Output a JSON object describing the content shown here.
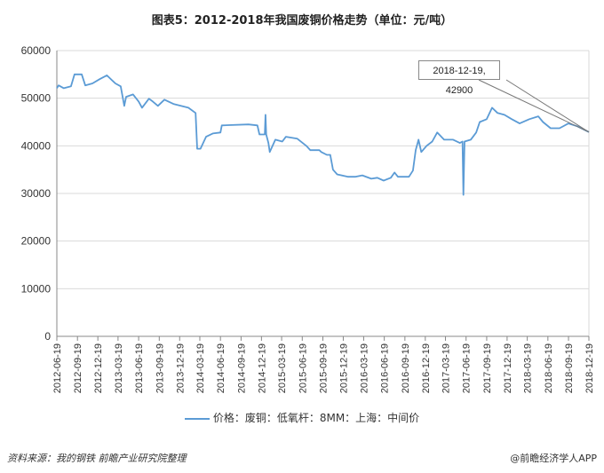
{
  "chart_data": {
    "type": "line",
    "title": "图表5：2012-2018年我国废铜价格走势（单位：元/吨）",
    "xlabel": "",
    "ylabel": "",
    "ylim": [
      0,
      60000
    ],
    "yticks": [
      "0",
      "10000",
      "20000",
      "30000",
      "40000",
      "50000",
      "60000"
    ],
    "xlim": [
      "2012-06-19",
      "2018-12-19"
    ],
    "xticks": [
      "2012-06-19",
      "2012-09-19",
      "2012-12-19",
      "2013-03-19",
      "2013-06-19",
      "2013-09-19",
      "2013-12-19",
      "2014-03-19",
      "2014-06-19",
      "2014-09-19",
      "2014-12-19",
      "2015-03-19",
      "2015-06-19",
      "2015-09-19",
      "2015-12-19",
      "2016-03-19",
      "2016-06-19",
      "2016-09-19",
      "2016-12-19",
      "2017-03-19",
      "2017-06-19",
      "2017-09-19",
      "2017-12-19",
      "2018-03-19",
      "2018-06-19",
      "2018-09-19",
      "2018-12-19"
    ],
    "grid": true,
    "legend_position": "bottom",
    "series": [
      {
        "name": "价格：废铜：低氧杆：8MM：上海：中间价",
        "color": "#5b9bd5",
        "points": [
          [
            "2012-06-19",
            52100
          ],
          [
            "2012-06-27",
            52700
          ],
          [
            "2012-07-20",
            52100
          ],
          [
            "2012-08-21",
            52500
          ],
          [
            "2012-09-06",
            55000
          ],
          [
            "2012-10-08",
            55000
          ],
          [
            "2012-10-24",
            52700
          ],
          [
            "2012-11-25",
            53100
          ],
          [
            "2012-12-27",
            54000
          ],
          [
            "2013-01-28",
            54800
          ],
          [
            "2013-03-07",
            53100
          ],
          [
            "2013-03-31",
            52500
          ],
          [
            "2013-04-16",
            48400
          ],
          [
            "2013-04-24",
            50300
          ],
          [
            "2013-05-25",
            50800
          ],
          [
            "2013-06-19",
            49300
          ],
          [
            "2013-07-04",
            48000
          ],
          [
            "2013-08-04",
            49900
          ],
          [
            "2013-08-21",
            49300
          ],
          [
            "2013-09-13",
            48400
          ],
          [
            "2013-10-12",
            49700
          ],
          [
            "2013-11-21",
            48800
          ],
          [
            "2014-01-27",
            48000
          ],
          [
            "2014-02-28",
            46900
          ],
          [
            "2014-03-07",
            39400
          ],
          [
            "2014-03-22",
            39400
          ],
          [
            "2014-04-16",
            41900
          ],
          [
            "2014-05-16",
            42600
          ],
          [
            "2014-06-19",
            42800
          ],
          [
            "2014-06-25",
            44300
          ],
          [
            "2014-10-22",
            44500
          ],
          [
            "2014-12-01",
            44300
          ],
          [
            "2014-12-10",
            42400
          ],
          [
            "2015-01-03",
            42400
          ],
          [
            "2015-01-06",
            46500
          ],
          [
            "2015-01-09",
            42400
          ],
          [
            "2015-01-19",
            40600
          ],
          [
            "2015-01-25",
            38700
          ],
          [
            "2015-02-19",
            41300
          ],
          [
            "2015-03-22",
            40900
          ],
          [
            "2015-04-07",
            41900
          ],
          [
            "2015-05-28",
            41500
          ],
          [
            "2015-07-07",
            40000
          ],
          [
            "2015-07-25",
            39100
          ],
          [
            "2015-09-03",
            39100
          ],
          [
            "2015-09-12",
            38700
          ],
          [
            "2015-10-07",
            38100
          ],
          [
            "2015-10-22",
            38100
          ],
          [
            "2015-11-03",
            35000
          ],
          [
            "2015-11-22",
            34000
          ],
          [
            "2016-01-10",
            33500
          ],
          [
            "2016-02-10",
            33500
          ],
          [
            "2016-03-13",
            33800
          ],
          [
            "2016-04-22",
            33100
          ],
          [
            "2016-05-19",
            33300
          ],
          [
            "2016-06-16",
            32700
          ],
          [
            "2016-07-18",
            33300
          ],
          [
            "2016-08-04",
            34400
          ],
          [
            "2016-08-19",
            33500
          ],
          [
            "2016-10-07",
            33500
          ],
          [
            "2016-10-25",
            34800
          ],
          [
            "2016-11-06",
            39100
          ],
          [
            "2016-11-19",
            41300
          ],
          [
            "2016-12-01",
            38700
          ],
          [
            "2016-12-25",
            40000
          ],
          [
            "2017-01-19",
            40900
          ],
          [
            "2017-02-10",
            42800
          ],
          [
            "2017-03-13",
            41300
          ],
          [
            "2017-04-22",
            41300
          ],
          [
            "2017-05-22",
            40600
          ],
          [
            "2017-06-03",
            40900
          ],
          [
            "2017-06-07",
            29700
          ],
          [
            "2017-06-12",
            40900
          ],
          [
            "2017-07-10",
            41300
          ],
          [
            "2017-08-03",
            42800
          ],
          [
            "2017-08-19",
            45000
          ],
          [
            "2017-09-19",
            45600
          ],
          [
            "2017-10-13",
            48000
          ],
          [
            "2017-11-06",
            46900
          ],
          [
            "2017-12-07",
            46500
          ],
          [
            "2018-01-09",
            45600
          ],
          [
            "2018-02-13",
            44700
          ],
          [
            "2018-03-28",
            45600
          ],
          [
            "2018-05-07",
            46200
          ],
          [
            "2018-05-28",
            45000
          ],
          [
            "2018-07-01",
            43700
          ],
          [
            "2018-08-10",
            43700
          ],
          [
            "2018-09-19",
            44700
          ],
          [
            "2018-10-28",
            44100
          ],
          [
            "2018-12-19",
            42900
          ]
        ]
      }
    ],
    "annotations": [
      {
        "text": "2018-12-19, 42900",
        "x": "2018-12-19",
        "y": 42900
      }
    ]
  },
  "footer": {
    "source": "资料来源：我的钢铁  前瞻产业研究院整理",
    "brand": "@前瞻经济学人APP"
  }
}
